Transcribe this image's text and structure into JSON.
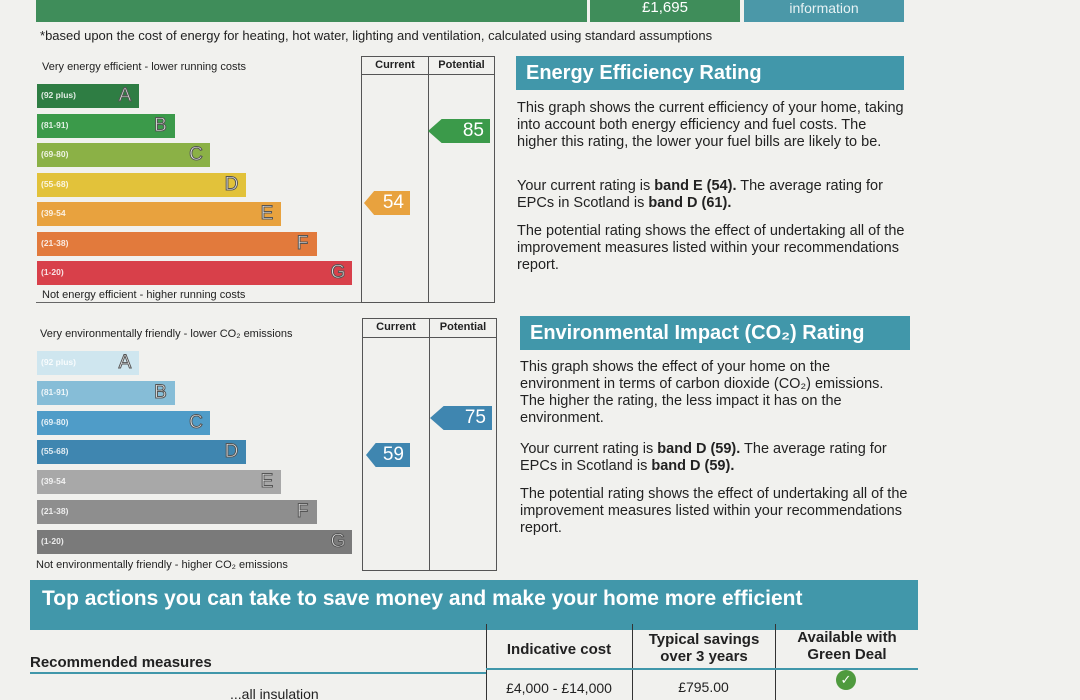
{
  "top": {
    "amount": "£1,695",
    "info_label": "information",
    "footnote": "based upon the cost of energy for heating, hot water, lighting and ventilation, calculated using standard assumptions"
  },
  "energy_chart": {
    "top_label": "Very energy efficient - lower running costs",
    "bottom_label": "Not energy efficient - higher running costs",
    "col_current": "Current",
    "col_potential": "Potential",
    "current": "54",
    "potential": "85",
    "bands": [
      {
        "range": "(92 plus)",
        "letter": "A",
        "color": "#2e7d43"
      },
      {
        "range": "(81-91)",
        "letter": "B",
        "color": "#3b9a4a"
      },
      {
        "range": "(69-80)",
        "letter": "C",
        "color": "#8bb146"
      },
      {
        "range": "(55-68)",
        "letter": "D",
        "color": "#e2c23a"
      },
      {
        "range": "(39-54",
        "letter": "E",
        "color": "#e8a23e"
      },
      {
        "range": "(21-38)",
        "letter": "F",
        "color": "#e27a3c"
      },
      {
        "range": "(1-20)",
        "letter": "G",
        "color": "#d8404a"
      }
    ]
  },
  "env_chart": {
    "top_label": "Very environmentally friendly - lower CO₂ emissions",
    "bottom_label": "Not environmentally friendly - higher CO₂ emissions",
    "col_current": "Current",
    "col_potential": "Potential",
    "current": "59",
    "potential": "75",
    "bands": [
      {
        "range": "(92 plus)",
        "letter": "A",
        "color": "#cfe6ef"
      },
      {
        "range": "(81-91)",
        "letter": "B",
        "color": "#86bdd7"
      },
      {
        "range": "(69-80)",
        "letter": "C",
        "color": "#4f9cc8"
      },
      {
        "range": "(55-68)",
        "letter": "D",
        "color": "#3f86b0"
      },
      {
        "range": "(39-54",
        "letter": "E",
        "color": "#a8a8a8"
      },
      {
        "range": "(21-38)",
        "letter": "F",
        "color": "#8e8e8e"
      },
      {
        "range": "(1-20)",
        "letter": "G",
        "color": "#7a7a7a"
      }
    ]
  },
  "energy_panel": {
    "title": "Energy Efficiency Rating",
    "p1": "This graph shows the current efficiency of your home, taking into account both energy efficiency and fuel costs. The higher this rating, the lower your fuel bills are likely to be.",
    "p2_pre": "Your current rating is ",
    "p2_bold1": "band E (54).",
    "p2_mid": " The average rating for EPCs in Scotland is ",
    "p2_bold2": "band D (61).",
    "p3": "The potential rating shows the effect of undertaking all of the improvement measures listed within your recommendations report."
  },
  "env_panel": {
    "title": "Environmental Impact (CO₂) Rating",
    "p1": "This graph shows the effect of your home on the environment in terms of carbon dioxide (CO₂) emissions. The higher the rating, the less impact it has on the environment.",
    "p2_pre": "Your current rating is ",
    "p2_bold1": "band D (59).",
    "p2_mid": " The average rating for EPCs in Scotland is ",
    "p2_bold2": "band D (59).",
    "p3": "The potential rating shows the effect of undertaking all of the improvement measures listed within your recommendations report."
  },
  "actions": {
    "title": "Top actions you can take to save money and make your home more efficient",
    "col_measures": "Recommended measures",
    "col_cost": "Indicative cost",
    "col_savings": "Typical savings over 3 years",
    "col_green": "Available with Green Deal",
    "row1_measure": "...all insulation",
    "row1_cost": "£4,000 - £14,000",
    "row1_savings": "£795.00",
    "check_icon": "check-circle-icon"
  }
}
